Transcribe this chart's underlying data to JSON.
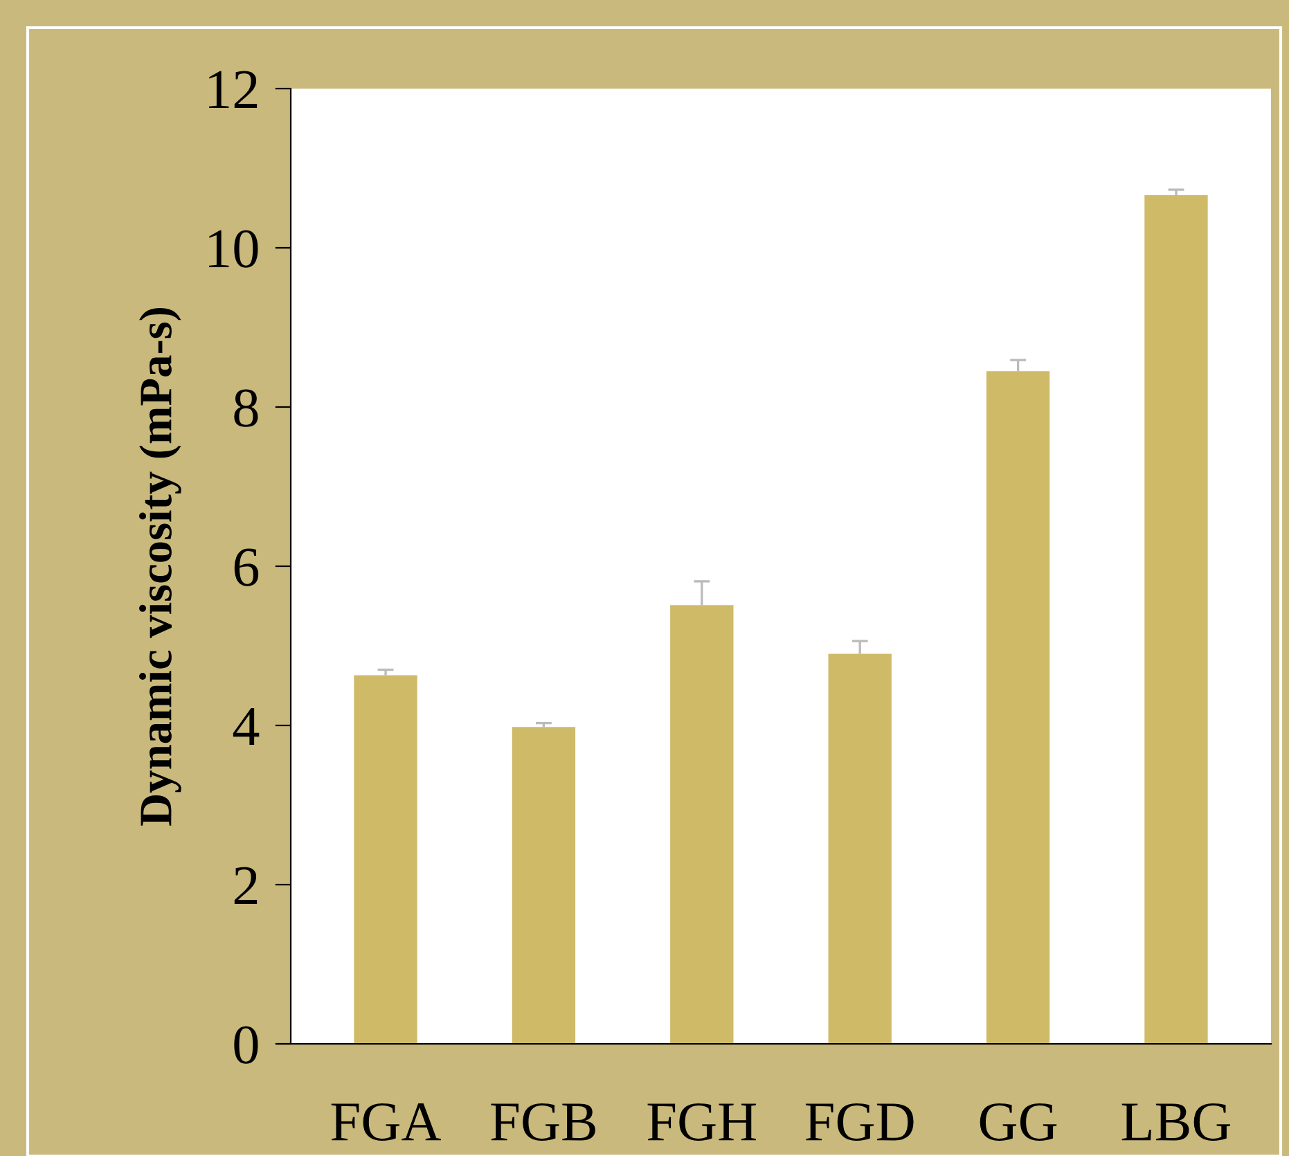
{
  "chart_data": {
    "type": "bar",
    "ylabel": "Dynamic viscosity (mPa-s)",
    "categories": [
      "FGA",
      "FGB",
      "FGH",
      "FGD",
      "GG",
      "LBG"
    ],
    "values": [
      4.63,
      3.98,
      5.51,
      4.9,
      8.45,
      10.66
    ],
    "errors": [
      [
        4.63,
        4.7
      ],
      [
        3.98,
        4.03
      ],
      [
        5.51,
        5.81
      ],
      [
        4.9,
        5.06
      ],
      [
        8.45,
        8.59
      ],
      [
        10.66,
        10.73
      ]
    ],
    "color": "#cfba68",
    "ylim": [
      0,
      12
    ],
    "yticks": [
      0,
      2,
      4,
      6,
      8,
      10,
      12
    ],
    "grid": false,
    "legend": false
  }
}
